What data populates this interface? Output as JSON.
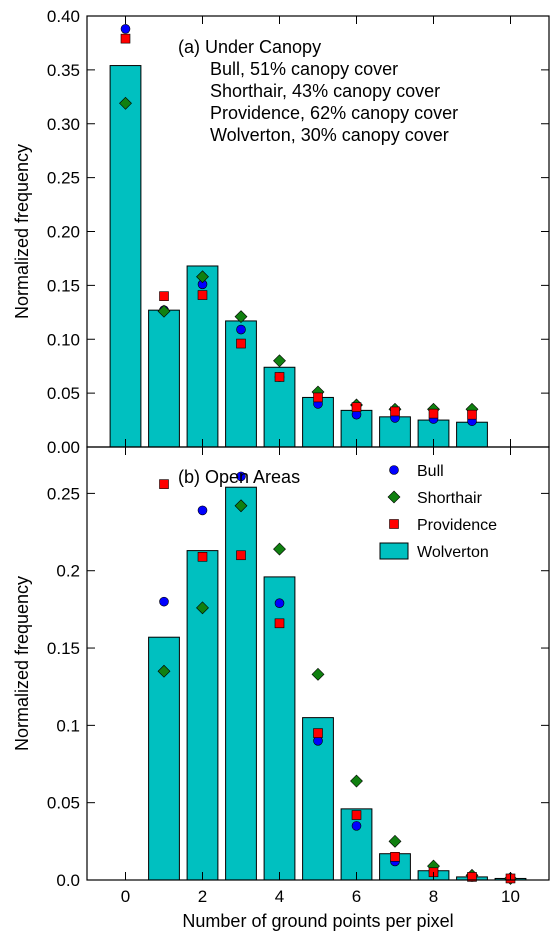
{
  "colors": {
    "wolverton_bar": "#00c0c0",
    "bull": "#0000ff",
    "shorthair": "#108010",
    "providence": "#ff0000",
    "edge": "#000000"
  },
  "chart_data": [
    {
      "type": "bar",
      "panel": "a",
      "xlim": [
        -1,
        11
      ],
      "ylim": [
        0,
        0.4
      ],
      "ylabel": "Normalized frequency",
      "yticks": [
        0.0,
        0.05,
        0.1,
        0.15,
        0.2,
        0.25,
        0.3,
        0.35,
        0.4
      ],
      "ytick_labels": [
        "0.00",
        "0.05",
        "0.10",
        "0.15",
        "0.20",
        "0.25",
        "0.30",
        "0.35",
        "0.40"
      ],
      "annotations": [
        "(a) Under Canopy",
        "Bull, 51% canopy cover",
        "Shorthair, 43% canopy cover",
        "Providence, 62% canopy cover",
        "Wolverton, 30% canopy cover"
      ],
      "x": [
        0,
        1,
        2,
        3,
        4,
        5,
        6,
        7,
        8,
        9
      ],
      "series": [
        {
          "name": "Wolverton",
          "kind": "bar",
          "marker": "bar",
          "values": [
            0.354,
            0.127,
            0.168,
            0.117,
            0.074,
            0.046,
            0.034,
            0.028,
            0.025,
            0.023
          ]
        },
        {
          "name": "Bull",
          "kind": "scatter",
          "marker": "circle",
          "values": [
            0.388,
            0.127,
            0.151,
            0.109,
            0.065,
            0.04,
            0.03,
            0.027,
            0.026,
            0.024
          ]
        },
        {
          "name": "Shorthair",
          "kind": "scatter",
          "marker": "diamond",
          "values": [
            0.319,
            0.126,
            0.158,
            0.121,
            0.08,
            0.051,
            0.039,
            0.035,
            0.035,
            0.035
          ]
        },
        {
          "name": "Providence",
          "kind": "scatter",
          "marker": "square",
          "values": [
            0.379,
            0.14,
            0.141,
            0.096,
            0.065,
            0.046,
            0.037,
            0.033,
            0.031,
            0.03
          ]
        }
      ]
    },
    {
      "type": "bar",
      "panel": "b",
      "xlim": [
        -1,
        11
      ],
      "ylim": [
        0,
        0.28
      ],
      "xlabel": "Number of ground points per pixel",
      "ylabel": "Normalized frequency",
      "xticks": [
        0,
        2,
        4,
        6,
        8,
        10
      ],
      "xtick_labels": [
        "0",
        "2",
        "4",
        "6",
        "8",
        "10"
      ],
      "yticks": [
        0.0,
        0.05,
        0.1,
        0.15,
        0.2,
        0.25
      ],
      "ytick_labels": [
        "0.0",
        "0.05",
        "0.1",
        "0.15",
        "0.2",
        "0.25"
      ],
      "annotations": [
        "(b) Open Areas"
      ],
      "legend": {
        "position": "top-right",
        "entries": [
          "Bull",
          "Shorthair",
          "Providence",
          "Wolverton"
        ]
      },
      "x": [
        1,
        2,
        3,
        4,
        5,
        6,
        7,
        8,
        9,
        10
      ],
      "series": [
        {
          "name": "Wolverton",
          "kind": "bar",
          "marker": "bar",
          "values": [
            0.157,
            0.213,
            0.254,
            0.196,
            0.105,
            0.046,
            0.017,
            0.006,
            0.002,
            0.001
          ]
        },
        {
          "name": "Bull",
          "kind": "scatter",
          "marker": "circle",
          "values": [
            0.18,
            0.239,
            0.261,
            0.179,
            0.09,
            0.035,
            0.012,
            0.005,
            0.002,
            0.001
          ]
        },
        {
          "name": "Shorthair",
          "kind": "scatter",
          "marker": "diamond",
          "values": [
            0.135,
            0.176,
            0.242,
            0.214,
            0.133,
            0.064,
            0.025,
            0.009,
            0.003,
            0.001
          ]
        },
        {
          "name": "Providence",
          "kind": "scatter",
          "marker": "square",
          "values": [
            0.256,
            0.209,
            0.21,
            0.166,
            0.095,
            0.042,
            0.015,
            0.005,
            0.002,
            0.001
          ]
        }
      ]
    }
  ]
}
